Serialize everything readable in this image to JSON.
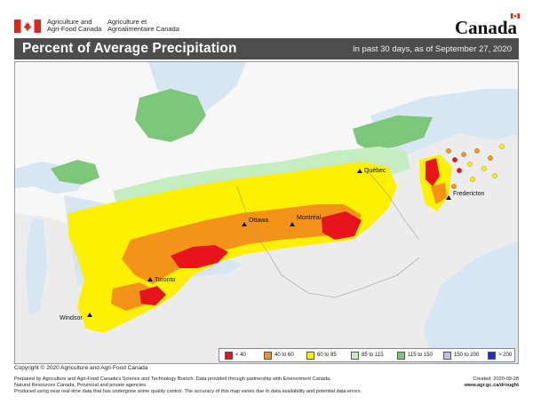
{
  "header": {
    "agency_en_line1": "Agriculture and",
    "agency_en_line2": "Agri-Food Canada",
    "agency_fr_line1": "Agriculture et",
    "agency_fr_line2": "Agroalimentaire Canada",
    "wordmark": "Canada"
  },
  "titlebar": {
    "title": "Percent of Average Precipitation",
    "subtitle": "In past 30 days, as of September 27, 2020"
  },
  "map": {
    "cities": [
      {
        "name": "Québec"
      },
      {
        "name": "Fredericton"
      },
      {
        "name": "Ottawa"
      },
      {
        "name": "Montréal"
      },
      {
        "name": "Toronto"
      },
      {
        "name": "Windsor"
      }
    ]
  },
  "legend": {
    "items": [
      {
        "label": "< 40",
        "color": "#e8141b"
      },
      {
        "label": "40 to 60",
        "color": "#f39319"
      },
      {
        "label": "60 to 85",
        "color": "#fdf000"
      },
      {
        "label": "85 to 115",
        "color": "#c6ecc2"
      },
      {
        "label": "115 to 150",
        "color": "#7dc77a"
      },
      {
        "label": "150 to 200",
        "color": "#c8bfe4"
      },
      {
        "label": "> 200",
        "color": "#1b2bd6"
      }
    ]
  },
  "footer": {
    "copyright": "Copyright © 2020 Agriculture and Agri-Food Canada",
    "line1": "Prepared by Agriculture and Agri-Food Canada's Science and Technology Branch. Data provided through partnership with Environment Canada,",
    "line2": "Natural Resources Canada, Provincial and private agencies.",
    "line3": "Produced using near real-time data that has undergone some quality control. The accuracy of this map varies due to data availability and potential data errors.",
    "created": "Created: 2020-09-28",
    "url": "www.agr.gc.ca/drought"
  }
}
